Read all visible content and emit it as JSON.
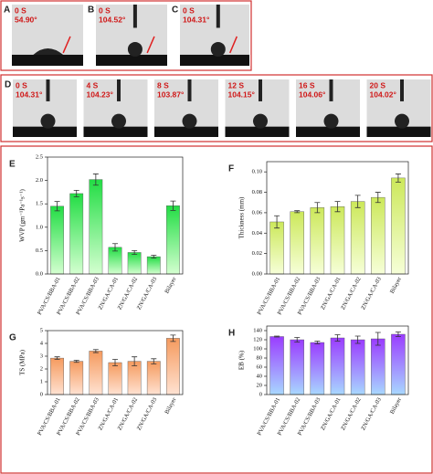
{
  "photos": [
    {
      "label": "A",
      "time": "0 S",
      "angle": "54.90°"
    },
    {
      "label": "B",
      "time": "0 S",
      "angle": "104.52°"
    },
    {
      "label": "C",
      "time": "0 S",
      "angle": "104.31°"
    },
    {
      "label": "D",
      "time": "0 S",
      "angle": "104.31°"
    },
    {
      "time": "4 S",
      "angle": "104.23°"
    },
    {
      "time": "8 S",
      "angle": "103.87°"
    },
    {
      "time": "12 S",
      "angle": "104.15°"
    },
    {
      "time": "16 S",
      "angle": "104.06°"
    },
    {
      "time": "20 S",
      "angle": "104.02°"
    }
  ],
  "chart_data": [
    {
      "type": "bar",
      "panel": "E",
      "y_label": "WVP (gm⁻¹Pa⁻¹s⁻¹)",
      "categories": [
        "PVA/CS/BBA-01",
        "PVA/CS/BBA-02",
        "PVA/CS/BBA-03",
        "ZN/GA/CA-01",
        "ZN/GA/CA-02",
        "ZN/GA/CA-03",
        "Bilayer"
      ],
      "values": [
        1.45,
        1.72,
        2.02,
        0.57,
        0.46,
        0.37,
        1.46
      ],
      "errors": [
        0.1,
        0.07,
        0.12,
        0.08,
        0.04,
        0.03,
        0.1
      ],
      "gradient": [
        "#22dd44",
        "#d4ffd0"
      ],
      "ylim": [
        0,
        2.5
      ],
      "yticks": [
        {
          "value": 0,
          "label": "0.0"
        },
        0.5,
        {
          "value": 1,
          "label": "1.0"
        },
        1.5,
        {
          "value": 2,
          "label": "2.0"
        },
        2.5
      ]
    },
    {
      "type": "bar",
      "panel": "F",
      "y_label": "Thickness (mm)",
      "categories": [
        "PVA/CS/BBA-01",
        "PVA/CS/BBA-02",
        "PVA/CS/BBA-03",
        "ZN/GA/CA-01",
        "ZN/GA/CA-02",
        "ZN/GA/CA-03",
        "Bilayer"
      ],
      "values": [
        0.051,
        0.061,
        0.065,
        0.066,
        0.071,
        0.075,
        0.094
      ],
      "errors": [
        0.006,
        0.001,
        0.005,
        0.005,
        0.006,
        0.005,
        0.004
      ],
      "gradient": [
        "#cce85a",
        "#f6ffd8"
      ],
      "ylim": [
        0,
        0.11
      ],
      "yticks": [
        {
          "value": 0,
          "label": "0.00"
        },
        0.02,
        0.04,
        0.06,
        0.08,
        {
          "value": 0.1,
          "label": "0.10"
        }
      ]
    },
    {
      "type": "bar",
      "panel": "G",
      "y_label": "TS (MPa)",
      "categories": [
        "PVA/CS/BBA-01",
        "PVA/CS/BBA-02",
        "PVA/CS/BBA-03",
        "ZN/GA/CA-01",
        "ZN/GA/CA-02",
        "ZN/GA/CA-03",
        "Bilayer"
      ],
      "values": [
        2.85,
        2.6,
        3.4,
        2.5,
        2.6,
        2.6,
        4.4
      ],
      "errors": [
        0.1,
        0.08,
        0.12,
        0.25,
        0.35,
        0.2,
        0.25
      ],
      "gradient": [
        "#f59a5e",
        "#ffe2d2"
      ],
      "ylim": [
        0,
        5
      ],
      "yticks": [
        0,
        1,
        2,
        3,
        4,
        5
      ]
    },
    {
      "type": "bar",
      "panel": "H",
      "y_label": "EB (%)",
      "categories": [
        "PVA/CS/BBA-01",
        "PVA/CS/BBA-02",
        "PVA/CS/BBA-03",
        "ZN/GA/CA-01",
        "ZN/GA/CA-02",
        "ZN/GA/CA-03",
        "Bilayer"
      ],
      "values": [
        127,
        120,
        114,
        124,
        120,
        122,
        132
      ],
      "errors": [
        1,
        5,
        3,
        7,
        8,
        14,
        5
      ],
      "gradient": [
        "#9a3cff",
        "#a8d8ff"
      ],
      "ylim": [
        0,
        150
      ],
      "yticks": [
        0,
        20,
        40,
        60,
        80,
        100,
        120,
        140
      ]
    }
  ]
}
